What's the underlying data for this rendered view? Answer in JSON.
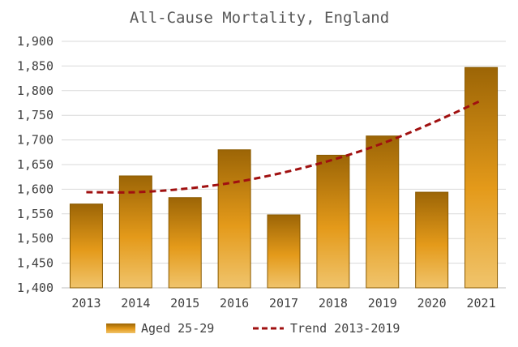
{
  "chart_data": {
    "type": "bar",
    "title": "All-Cause Mortality, England",
    "categories": [
      "2013",
      "2014",
      "2015",
      "2016",
      "2017",
      "2018",
      "2019",
      "2020",
      "2021"
    ],
    "series": [
      {
        "name": "Aged 25-29",
        "type": "bar",
        "values": [
          1570,
          1627,
          1583,
          1680,
          1548,
          1669,
          1708,
          1594,
          1847
        ]
      },
      {
        "name": "Trend 2013-2019",
        "type": "line",
        "style": "dashed",
        "values": [
          1594,
          1594,
          1601,
          1614,
          1634,
          1660,
          1693,
          1734,
          1780
        ]
      }
    ],
    "ylim": [
      1400,
      1900
    ],
    "yticks": [
      1400,
      1450,
      1500,
      1550,
      1600,
      1650,
      1700,
      1750,
      1800,
      1850,
      1900
    ],
    "ytick_labels": [
      "1,400",
      "1,450",
      "1,500",
      "1,550",
      "1,600",
      "1,650",
      "1,700",
      "1,750",
      "1,800",
      "1,850",
      "1,900"
    ],
    "grid": true,
    "legend_position": "bottom",
    "colors": {
      "bar_top": "#9c6506",
      "bar_mid": "#e49a1a",
      "bar_bottom": "#f0c46c",
      "trend": "#a01010"
    }
  }
}
